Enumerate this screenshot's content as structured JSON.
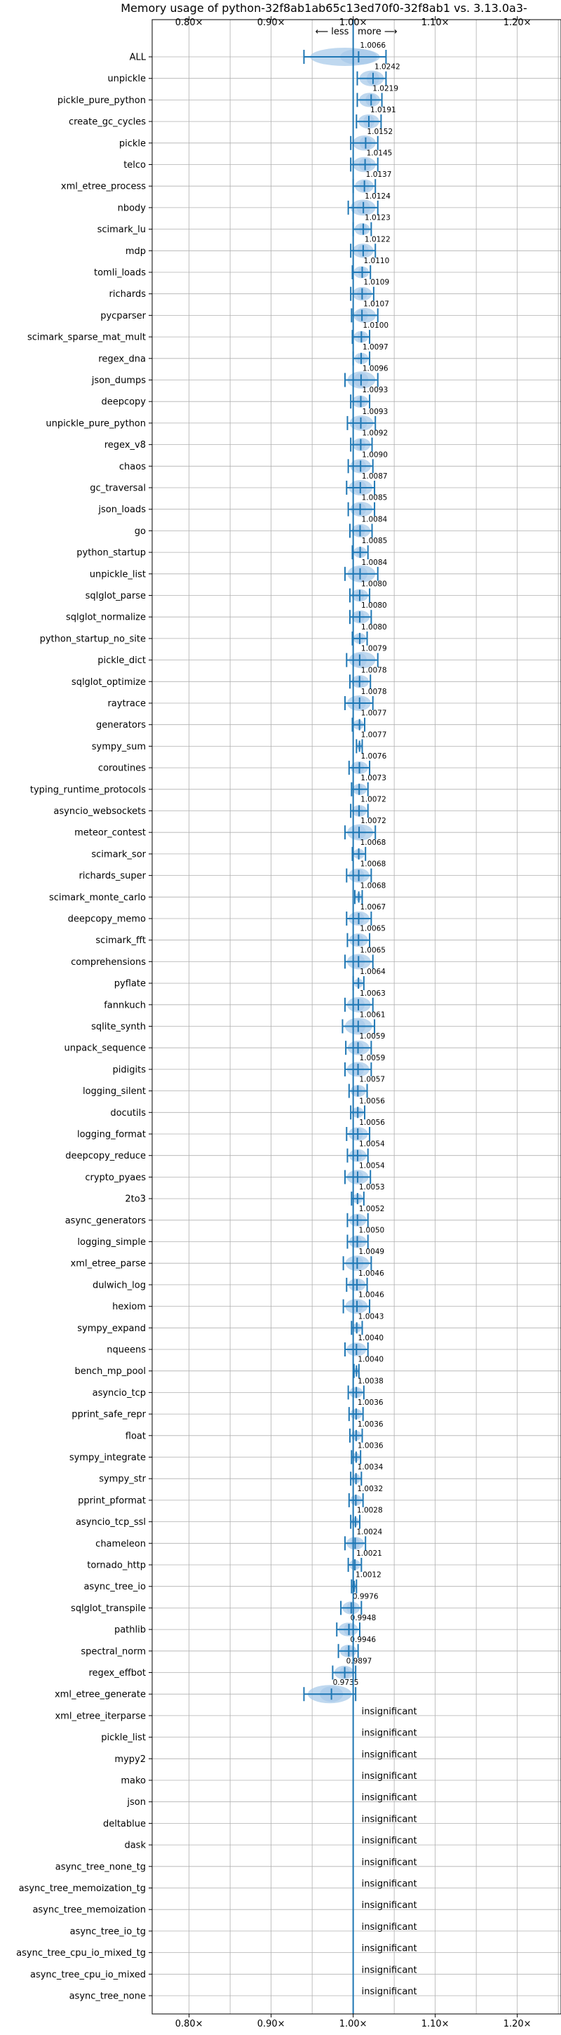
{
  "chart_data": {
    "type": "violin",
    "title": "Memory usage of python-32f8ab1ab65c13ed70f0-32f8ab1 vs. 3.13.0a3-",
    "direction_label": "⟵ less | more ⟶",
    "x_ticks": [
      0.8,
      0.9,
      1.0,
      1.1,
      1.2
    ],
    "x_tick_labels": [
      "0.80×",
      "0.90×",
      "1.00×",
      "1.10×",
      "1.20×"
    ],
    "xlim": [
      0.755,
      1.255
    ],
    "reference_line": 1.0,
    "grid": true,
    "insignificant_label": "insignificant",
    "color": "#1f77b4",
    "violin_color": "#aacbea",
    "benchmarks": [
      {
        "name": "ALL",
        "value": 1.0066,
        "label": "1.0066",
        "low": 0.94,
        "high": 1.04
      },
      {
        "name": "unpickle",
        "value": 1.0242,
        "label": "1.0242",
        "low": 1.005,
        "high": 1.04
      },
      {
        "name": "pickle_pure_python",
        "value": 1.0219,
        "label": "1.0219",
        "low": 1.005,
        "high": 1.035
      },
      {
        "name": "create_gc_cycles",
        "value": 1.0191,
        "label": "1.0191",
        "low": 1.004,
        "high": 1.034
      },
      {
        "name": "pickle",
        "value": 1.0152,
        "label": "1.0152",
        "low": 0.997,
        "high": 1.03
      },
      {
        "name": "telco",
        "value": 1.0145,
        "label": "1.0145",
        "low": 0.997,
        "high": 1.03
      },
      {
        "name": "xml_etree_process",
        "value": 1.0137,
        "label": "1.0137",
        "low": 1.0,
        "high": 1.027
      },
      {
        "name": "nbody",
        "value": 1.0124,
        "label": "1.0124",
        "low": 0.994,
        "high": 1.03
      },
      {
        "name": "scimark_lu",
        "value": 1.0123,
        "label": "1.0123",
        "low": 1.0,
        "high": 1.022
      },
      {
        "name": "mdp",
        "value": 1.0122,
        "label": "1.0122",
        "low": 0.997,
        "high": 1.027
      },
      {
        "name": "tomli_loads",
        "value": 1.011,
        "label": "1.0110",
        "low": 0.999,
        "high": 1.021
      },
      {
        "name": "richards",
        "value": 1.0109,
        "label": "1.0109",
        "low": 0.997,
        "high": 1.025
      },
      {
        "name": "pycparser",
        "value": 1.0107,
        "label": "1.0107",
        "low": 0.998,
        "high": 1.03
      },
      {
        "name": "scimark_sparse_mat_mult",
        "value": 1.01,
        "label": "1.0100",
        "low": 0.999,
        "high": 1.02
      },
      {
        "name": "regex_dna",
        "value": 1.0097,
        "label": "1.0097",
        "low": 1.0,
        "high": 1.02
      },
      {
        "name": "json_dumps",
        "value": 1.0096,
        "label": "1.0096",
        "low": 0.99,
        "high": 1.03
      },
      {
        "name": "deepcopy",
        "value": 1.0093,
        "label": "1.0093",
        "low": 0.997,
        "high": 1.02
      },
      {
        "name": "unpickle_pure_python",
        "value": 1.0093,
        "label": "1.0093",
        "low": 0.993,
        "high": 1.027
      },
      {
        "name": "regex_v8",
        "value": 1.0092,
        "label": "1.0092",
        "low": 0.997,
        "high": 1.023
      },
      {
        "name": "chaos",
        "value": 1.009,
        "label": "1.0090",
        "low": 0.994,
        "high": 1.024
      },
      {
        "name": "gc_traversal",
        "value": 1.0087,
        "label": "1.0087",
        "low": 0.992,
        "high": 1.026
      },
      {
        "name": "json_loads",
        "value": 1.0085,
        "label": "1.0085",
        "low": 0.994,
        "high": 1.026
      },
      {
        "name": "go",
        "value": 1.0084,
        "label": "1.0084",
        "low": 0.996,
        "high": 1.023
      },
      {
        "name": "python_startup",
        "value": 1.0085,
        "label": "1.0085",
        "low": 0.999,
        "high": 1.018
      },
      {
        "name": "unpickle_list",
        "value": 1.0084,
        "label": "1.0084",
        "low": 0.99,
        "high": 1.03
      },
      {
        "name": "sqlglot_parse",
        "value": 1.008,
        "label": "1.0080",
        "low": 0.996,
        "high": 1.02
      },
      {
        "name": "sqlglot_normalize",
        "value": 1.008,
        "label": "1.0080",
        "low": 0.996,
        "high": 1.022
      },
      {
        "name": "python_startup_no_site",
        "value": 1.008,
        "label": "1.0080",
        "low": 0.999,
        "high": 1.017
      },
      {
        "name": "pickle_dict",
        "value": 1.0079,
        "label": "1.0079",
        "low": 0.992,
        "high": 1.03
      },
      {
        "name": "sqlglot_optimize",
        "value": 1.0078,
        "label": "1.0078",
        "low": 0.996,
        "high": 1.021
      },
      {
        "name": "raytrace",
        "value": 1.0078,
        "label": "1.0078",
        "low": 0.99,
        "high": 1.024
      },
      {
        "name": "generators",
        "value": 1.0077,
        "label": "1.0077",
        "low": 0.999,
        "high": 1.014
      },
      {
        "name": "sympy_sum",
        "value": 1.0077,
        "label": "1.0077",
        "low": 1.004,
        "high": 1.011
      },
      {
        "name": "coroutines",
        "value": 1.0076,
        "label": "1.0076",
        "low": 0.995,
        "high": 1.02
      },
      {
        "name": "typing_runtime_protocols",
        "value": 1.0073,
        "label": "1.0073",
        "low": 0.998,
        "high": 1.018
      },
      {
        "name": "asyncio_websockets",
        "value": 1.0072,
        "label": "1.0072",
        "low": 0.997,
        "high": 1.018
      },
      {
        "name": "meteor_contest",
        "value": 1.0072,
        "label": "1.0072",
        "low": 0.99,
        "high": 1.027
      },
      {
        "name": "scimark_sor",
        "value": 1.0068,
        "label": "1.0068",
        "low": 0.999,
        "high": 1.015
      },
      {
        "name": "richards_super",
        "value": 1.0068,
        "label": "1.0068",
        "low": 0.992,
        "high": 1.022
      },
      {
        "name": "scimark_monte_carlo",
        "value": 1.0068,
        "label": "1.0068",
        "low": 1.002,
        "high": 1.011
      },
      {
        "name": "deepcopy_memo",
        "value": 1.0067,
        "label": "1.0067",
        "low": 0.992,
        "high": 1.022
      },
      {
        "name": "scimark_fft",
        "value": 1.0065,
        "label": "1.0065",
        "low": 0.993,
        "high": 1.02
      },
      {
        "name": "comprehensions",
        "value": 1.0065,
        "label": "1.0065",
        "low": 0.99,
        "high": 1.024
      },
      {
        "name": "pyflate",
        "value": 1.0064,
        "label": "1.0064",
        "low": 1.0,
        "high": 1.013
      },
      {
        "name": "fannkuch",
        "value": 1.0063,
        "label": "1.0063",
        "low": 0.99,
        "high": 1.024
      },
      {
        "name": "sqlite_synth",
        "value": 1.0061,
        "label": "1.0061",
        "low": 0.987,
        "high": 1.026
      },
      {
        "name": "unpack_sequence",
        "value": 1.0059,
        "label": "1.0059",
        "low": 0.991,
        "high": 1.022
      },
      {
        "name": "pidigits",
        "value": 1.0059,
        "label": "1.0059",
        "low": 0.99,
        "high": 1.022
      },
      {
        "name": "logging_silent",
        "value": 1.0057,
        "label": "1.0057",
        "low": 0.995,
        "high": 1.017
      },
      {
        "name": "docutils",
        "value": 1.0056,
        "label": "1.0056",
        "low": 0.997,
        "high": 1.014
      },
      {
        "name": "logging_format",
        "value": 1.0056,
        "label": "1.0056",
        "low": 0.992,
        "high": 1.02
      },
      {
        "name": "deepcopy_reduce",
        "value": 1.0054,
        "label": "1.0054",
        "low": 0.993,
        "high": 1.018
      },
      {
        "name": "crypto_pyaes",
        "value": 1.0054,
        "label": "1.0054",
        "low": 0.99,
        "high": 1.021
      },
      {
        "name": "2to3",
        "value": 1.0053,
        "label": "1.0053",
        "low": 0.998,
        "high": 1.013
      },
      {
        "name": "async_generators",
        "value": 1.0052,
        "label": "1.0052",
        "low": 0.993,
        "high": 1.018
      },
      {
        "name": "logging_simple",
        "value": 1.005,
        "label": "1.0050",
        "low": 0.993,
        "high": 1.018
      },
      {
        "name": "xml_etree_parse",
        "value": 1.0049,
        "label": "1.0049",
        "low": 0.988,
        "high": 1.022
      },
      {
        "name": "dulwich_log",
        "value": 1.0046,
        "label": "1.0046",
        "low": 0.992,
        "high": 1.017
      },
      {
        "name": "hexiom",
        "value": 1.0046,
        "label": "1.0046",
        "low": 0.988,
        "high": 1.02
      },
      {
        "name": "sympy_expand",
        "value": 1.0043,
        "label": "1.0043",
        "low": 0.998,
        "high": 1.011
      },
      {
        "name": "nqueens",
        "value": 1.004,
        "label": "1.0040",
        "low": 0.99,
        "high": 1.018
      },
      {
        "name": "bench_mp_pool",
        "value": 1.004,
        "label": "1.0040",
        "low": 1.001,
        "high": 1.007
      },
      {
        "name": "asyncio_tcp",
        "value": 1.0038,
        "label": "1.0038",
        "low": 0.994,
        "high": 1.013
      },
      {
        "name": "pprint_safe_repr",
        "value": 1.0036,
        "label": "1.0036",
        "low": 0.995,
        "high": 1.012
      },
      {
        "name": "float",
        "value": 1.0036,
        "label": "1.0036",
        "low": 0.996,
        "high": 1.011
      },
      {
        "name": "sympy_integrate",
        "value": 1.0036,
        "label": "1.0036",
        "low": 0.998,
        "high": 1.009
      },
      {
        "name": "sympy_str",
        "value": 1.0034,
        "label": "1.0034",
        "low": 0.997,
        "high": 1.01
      },
      {
        "name": "pprint_pformat",
        "value": 1.0032,
        "label": "1.0032",
        "low": 0.995,
        "high": 1.012
      },
      {
        "name": "asyncio_tcp_ssl",
        "value": 1.0028,
        "label": "1.0028",
        "low": 0.997,
        "high": 1.008
      },
      {
        "name": "chameleon",
        "value": 1.0024,
        "label": "1.0024",
        "low": 0.99,
        "high": 1.015
      },
      {
        "name": "tornado_http",
        "value": 1.0021,
        "label": "1.0021",
        "low": 0.994,
        "high": 1.01
      },
      {
        "name": "async_tree_io",
        "value": 1.0012,
        "label": "1.0012",
        "low": 0.998,
        "high": 1.004
      },
      {
        "name": "sqlglot_transpile",
        "value": 0.9976,
        "label": "0.9976",
        "low": 0.985,
        "high": 1.01
      },
      {
        "name": "pathlib",
        "value": 0.9948,
        "label": "0.9948",
        "low": 0.98,
        "high": 1.008
      },
      {
        "name": "spectral_norm",
        "value": 0.9946,
        "label": "0.9946",
        "low": 0.982,
        "high": 1.006
      },
      {
        "name": "regex_effbot",
        "value": 0.9897,
        "label": "0.9897",
        "low": 0.975,
        "high": 1.003
      },
      {
        "name": "xml_etree_generate",
        "value": 0.9735,
        "label": "0.9735",
        "low": 0.94,
        "high": 1.003
      },
      {
        "name": "xml_etree_iterparse",
        "value": null,
        "label": "insignificant"
      },
      {
        "name": "pickle_list",
        "value": null,
        "label": "insignificant"
      },
      {
        "name": "mypy2",
        "value": null,
        "label": "insignificant"
      },
      {
        "name": "mako",
        "value": null,
        "label": "insignificant"
      },
      {
        "name": "json",
        "value": null,
        "label": "insignificant"
      },
      {
        "name": "deltablue",
        "value": null,
        "label": "insignificant"
      },
      {
        "name": "dask",
        "value": null,
        "label": "insignificant"
      },
      {
        "name": "async_tree_none_tg",
        "value": null,
        "label": "insignificant"
      },
      {
        "name": "async_tree_memoization_tg",
        "value": null,
        "label": "insignificant"
      },
      {
        "name": "async_tree_memoization",
        "value": null,
        "label": "insignificant"
      },
      {
        "name": "async_tree_io_tg",
        "value": null,
        "label": "insignificant"
      },
      {
        "name": "async_tree_cpu_io_mixed_tg",
        "value": null,
        "label": "insignificant"
      },
      {
        "name": "async_tree_cpu_io_mixed",
        "value": null,
        "label": "insignificant"
      },
      {
        "name": "async_tree_none",
        "value": null,
        "label": "insignificant"
      }
    ]
  }
}
